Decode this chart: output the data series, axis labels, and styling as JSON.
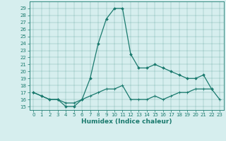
{
  "title": "",
  "xlabel": "Humidex (Indice chaleur)",
  "xlim": [
    -0.5,
    23.5
  ],
  "ylim": [
    14.5,
    30.0
  ],
  "yticks": [
    15,
    16,
    17,
    18,
    19,
    20,
    21,
    22,
    23,
    24,
    25,
    26,
    27,
    28,
    29
  ],
  "xticks": [
    0,
    1,
    2,
    3,
    4,
    5,
    6,
    7,
    8,
    9,
    10,
    11,
    12,
    13,
    14,
    15,
    16,
    17,
    18,
    19,
    20,
    21,
    22,
    23
  ],
  "line_color": "#1a7a6e",
  "bg_color": "#d6eeee",
  "line1_x": [
    0,
    1,
    2,
    3,
    4,
    5,
    6,
    7,
    8,
    9,
    10,
    11,
    12,
    13,
    14,
    15,
    16,
    17,
    18,
    19,
    20,
    21,
    22
  ],
  "line1_y": [
    17.0,
    16.5,
    16.0,
    16.0,
    15.0,
    15.0,
    16.0,
    19.0,
    24.0,
    27.5,
    29.0,
    29.0,
    22.5,
    20.5,
    20.5,
    21.0,
    20.5,
    20.0,
    19.5,
    19.0,
    19.0,
    19.5,
    17.5
  ],
  "line2_x": [
    0,
    1,
    2,
    3,
    4,
    5,
    6,
    7,
    8,
    9,
    10,
    11,
    12,
    13,
    14,
    15,
    16,
    17,
    18,
    19,
    20,
    21,
    22,
    23
  ],
  "line2_y": [
    17.0,
    16.5,
    16.0,
    16.0,
    15.5,
    15.5,
    16.0,
    16.5,
    17.0,
    17.5,
    17.5,
    18.0,
    16.0,
    16.0,
    16.0,
    16.5,
    16.0,
    16.5,
    17.0,
    17.0,
    17.5,
    17.5,
    17.5,
    16.0
  ],
  "tick_fontsize": 5.0,
  "xlabel_fontsize": 6.5
}
